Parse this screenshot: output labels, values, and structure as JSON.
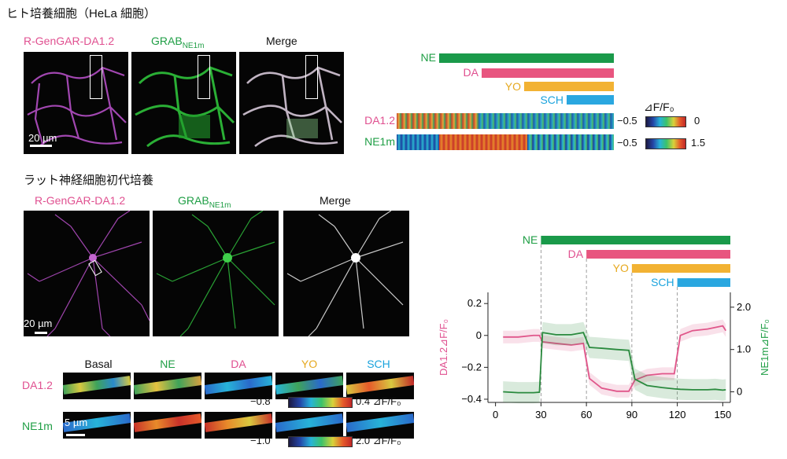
{
  "hela": {
    "title": "ヒト培養細胞（HeLa 細胞）",
    "panels": [
      {
        "label": "R-GenGAR-DA1.2",
        "sub": ""
      },
      {
        "label": "GRAB",
        "sub": "NE1m"
      },
      {
        "label": "Merge",
        "sub": ""
      }
    ],
    "scale": "20 µm"
  },
  "neuron": {
    "title": "ラット神経細胞初代培養",
    "panels": [
      {
        "label": "R-GenGAR-DA1.2",
        "sub": ""
      },
      {
        "label": "GRAB",
        "sub": "NE1m"
      },
      {
        "label": "Merge",
        "sub": ""
      }
    ],
    "scale": "20 µm"
  },
  "top_timeline": {
    "bars": [
      {
        "label": "NE",
        "color": "#1a9a4a"
      },
      {
        "label": "DA",
        "color": "#e8557f"
      },
      {
        "label": "YO",
        "color": "#f2b233"
      },
      {
        "label": "SCH",
        "color": "#2aa7e0"
      }
    ],
    "kymo_labels": [
      "DA1.2",
      "NE1m"
    ],
    "unit": "⊿F/F₀",
    "ranges": [
      [
        "−0.5",
        "0"
      ],
      [
        "−0.5",
        "1.5"
      ]
    ]
  },
  "strips": {
    "columns": [
      "Basal",
      "NE",
      "DA",
      "YO",
      "SCH"
    ],
    "rows": [
      "DA1.2",
      "NE1m"
    ],
    "scale": "5 µm",
    "ranges": [
      [
        "−0.8",
        "0.4 ⊿F/F₀"
      ],
      [
        "−1.0",
        "2.0 ⊿F/F₀"
      ]
    ]
  },
  "chart_data": {
    "type": "line",
    "drugs": [
      {
        "label": "NE",
        "start": 30,
        "end": 155,
        "color": "#1a9a4a"
      },
      {
        "label": "DA",
        "start": 60,
        "end": 155,
        "color": "#e8557f"
      },
      {
        "label": "YO",
        "start": 90,
        "end": 155,
        "color": "#f2b233"
      },
      {
        "label": "SCH",
        "start": 120,
        "end": 155,
        "color": "#2aa7e0"
      }
    ],
    "x": [
      5,
      15,
      25,
      29,
      31,
      40,
      50,
      58,
      62,
      70,
      80,
      88,
      92,
      100,
      110,
      118,
      122,
      130,
      140,
      145,
      150,
      152
    ],
    "series": [
      {
        "name": "DA1.2",
        "axis": "left",
        "color": "#e0568a",
        "values": [
          -0.01,
          -0.01,
          0.0,
          0.0,
          -0.04,
          -0.05,
          -0.06,
          -0.05,
          -0.27,
          -0.33,
          -0.35,
          -0.35,
          -0.28,
          -0.25,
          -0.24,
          -0.24,
          0.0,
          0.03,
          0.04,
          0.05,
          0.06,
          0.03
        ]
      },
      {
        "name": "NE1m",
        "axis": "right",
        "color": "#2a8a3e",
        "values": [
          0.0,
          -0.02,
          -0.02,
          -0.01,
          1.4,
          1.35,
          1.35,
          1.4,
          1.05,
          1.03,
          1.0,
          0.98,
          0.3,
          0.15,
          0.1,
          0.07,
          0.06,
          0.05,
          0.05,
          0.06,
          0.04,
          0.05
        ]
      }
    ],
    "xticks": [
      0,
      30,
      60,
      90,
      120,
      150
    ],
    "ylabel_left": "DA1.2⊿F/F₀",
    "ylabel_right": "NE1m⊿F/F₀",
    "yticks_left": [
      "0.2",
      "0",
      "−0.2",
      "−0.4"
    ],
    "yticks_right": [
      "2.0",
      "1.0",
      "0"
    ],
    "xlim": [
      -5,
      155
    ],
    "ylim_left": [
      -0.42,
      0.27
    ],
    "ylim_right": [
      -0.25,
      2.35
    ]
  }
}
